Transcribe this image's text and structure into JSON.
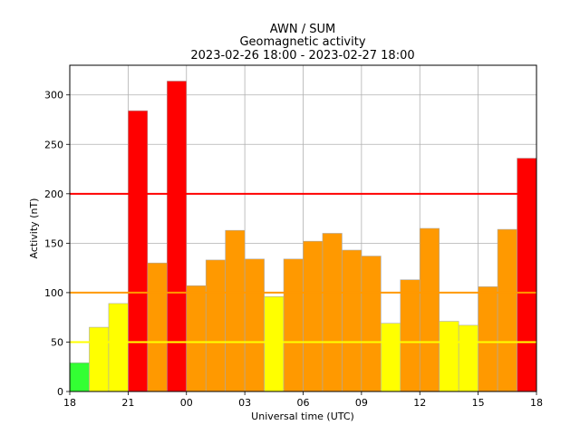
{
  "chart_data": {
    "type": "bar",
    "title_lines": [
      "AWN / SUM",
      "Geomagnetic activity",
      "2023-02-26 18:00 - 2023-02-27 18:00"
    ],
    "xlabel": "Universal time (UTC)",
    "ylabel": "Activity (nT)",
    "xlim": [
      0,
      24
    ],
    "ylim": [
      0,
      330
    ],
    "x_ticks": [
      {
        "pos": 0,
        "label": "18"
      },
      {
        "pos": 3,
        "label": "21"
      },
      {
        "pos": 6,
        "label": "00"
      },
      {
        "pos": 9,
        "label": "03"
      },
      {
        "pos": 12,
        "label": "06"
      },
      {
        "pos": 15,
        "label": "09"
      },
      {
        "pos": 18,
        "label": "12"
      },
      {
        "pos": 21,
        "label": "15"
      },
      {
        "pos": 24,
        "label": "18"
      }
    ],
    "y_ticks": [
      0,
      50,
      100,
      150,
      200,
      250,
      300
    ],
    "grid": true,
    "bar_width_hours": 1,
    "values": [
      29,
      65,
      89,
      284,
      130,
      314,
      107,
      133,
      163,
      134,
      96,
      134,
      152,
      160,
      143,
      137,
      69,
      113,
      165,
      71,
      67,
      106,
      164,
      236
    ],
    "thresholds": [
      {
        "value": 50,
        "color": "#ffff00"
      },
      {
        "value": 100,
        "color": "#ff9900"
      },
      {
        "value": 200,
        "color": "#ff0000"
      }
    ],
    "level_colors": {
      "low": "#33ff33",
      "moderate": "#ffff00",
      "elevated": "#ff9900",
      "high": "#ff0000"
    }
  }
}
